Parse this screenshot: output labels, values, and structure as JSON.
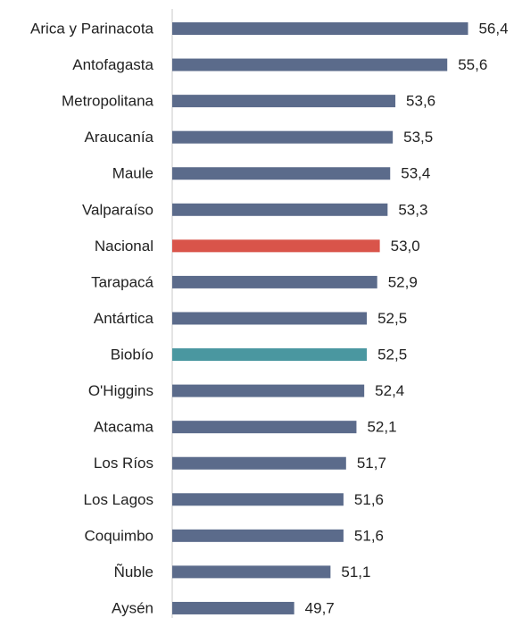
{
  "chart_data": {
    "type": "bar",
    "orientation": "horizontal",
    "categories": [
      "Arica y Parinacota",
      "Antofagasta",
      "Metropolitana",
      "Araucanía",
      "Maule",
      "Valparaíso",
      "Nacional",
      "Tarapacá",
      "Antártica",
      "Biobío",
      "O'Higgins",
      "Atacama",
      "Los Ríos",
      "Los Lagos",
      "Coquimbo",
      "Ñuble",
      "Aysén"
    ],
    "values": [
      56.4,
      55.6,
      53.6,
      53.5,
      53.4,
      53.3,
      53.0,
      52.9,
      52.5,
      52.5,
      52.4,
      52.1,
      51.7,
      51.6,
      51.6,
      51.1,
      49.7
    ],
    "value_labels": [
      "56,4",
      "55,6",
      "53,6",
      "53,5",
      "53,4",
      "53,3",
      "53,0",
      "52,9",
      "52,5",
      "52,5",
      "52,4",
      "52,1",
      "51,7",
      "51,6",
      "51,6",
      "51,1",
      "49,7"
    ],
    "colors": [
      "#5b6b8b",
      "#5b6b8b",
      "#5b6b8b",
      "#5b6b8b",
      "#5b6b8b",
      "#5b6b8b",
      "#d9544a",
      "#5b6b8b",
      "#5b6b8b",
      "#4a97a0",
      "#5b6b8b",
      "#5b6b8b",
      "#5b6b8b",
      "#5b6b8b",
      "#5b6b8b",
      "#5b6b8b",
      "#5b6b8b"
    ],
    "xlim": [
      45,
      58
    ]
  }
}
